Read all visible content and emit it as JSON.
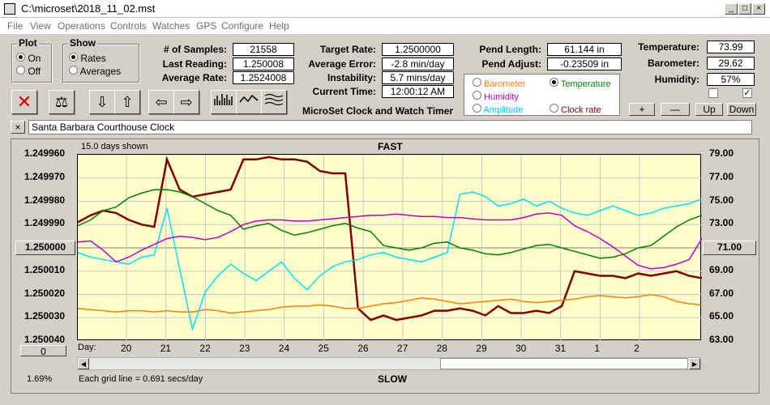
{
  "window": {
    "title": "C:\\microset\\2018_11_02.mst",
    "min": "_",
    "max": "□",
    "close": "×"
  },
  "menu": [
    "File",
    "View",
    "Operations",
    "Controls",
    "Watches",
    "GPS",
    "Configure",
    "Help"
  ],
  "plot_group": {
    "title": "Plot",
    "options": [
      "On",
      "Off"
    ],
    "selected": 0
  },
  "show_group": {
    "title": "Show",
    "options": [
      "Rates",
      "Averages"
    ],
    "selected": 0
  },
  "stats": {
    "samples_label": "# of Samples:",
    "samples": "21558",
    "last_label": "Last Reading:",
    "last": "1.250008",
    "avg_label": "Average Rate:",
    "avg": "1.2524008",
    "target_label": "Target Rate:",
    "target": "1.2500000",
    "avgerr_label": "Average Error:",
    "avgerr": "-2.8 min/day",
    "instab_label": "Instability:",
    "instab": "5.7 mins/day",
    "time_label": "Current Time:",
    "time": "12:00:12 AM",
    "pendlen_label": "Pend Length:",
    "pendlen": "61.144 in",
    "pendadj_label": "Pend Adjust:",
    "pendadj": "-0.23509 in",
    "temp_label": "Temperature:",
    "temp": "73.99",
    "baro_label": "Barometer:",
    "baro": "29.62",
    "hum_label": "Humidity:",
    "hum": "57%"
  },
  "subtitle": "MicroSet Clock and Watch Timer",
  "series_select": {
    "options": [
      {
        "label": "Barometer",
        "color": "#ff8000"
      },
      {
        "label": "Temperature",
        "color": "#008000"
      },
      {
        "label": "Humidity",
        "color": "#c000c0"
      },
      {
        "label": "Amplitude",
        "color": "#00c0ff"
      },
      {
        "label": "Clock rate",
        "color": "#800000"
      }
    ],
    "selected": 1
  },
  "adjust_buttons": [
    "+",
    "—",
    "Up",
    "Down"
  ],
  "clock_name": "Santa Barbara Courthouse Clock",
  "close_x": "×",
  "chart_data": {
    "type": "line",
    "title_top": "FAST",
    "title_bottom": "SLOW",
    "days_shown": "15.0 days shown",
    "grid_note": "Each grid line = 0.691 secs/day",
    "percent": "1.69%",
    "left_button": "1.250000",
    "right_button": "71.00",
    "bottom_left_button": "0",
    "day_label": "Day:",
    "x_ticks": [
      "20",
      "21",
      "22",
      "23",
      "24",
      "25",
      "26",
      "27",
      "28",
      "29",
      "30",
      "31",
      "1",
      "2"
    ],
    "y_left_ticks": [
      "1.249960",
      "1.249970",
      "1.249980",
      "1.249990",
      "1.250000",
      "1.250010",
      "1.250020",
      "1.250030",
      "1.250040"
    ],
    "y_right_ticks": [
      "79.00",
      "77.00",
      "75.00",
      "73.00",
      "71.00",
      "69.00",
      "67.00",
      "65.00",
      "63.00"
    ],
    "series": [
      {
        "name": "Clock rate",
        "color": "#800000",
        "values": [
          1.249989,
          1.249986,
          1.249984,
          1.249985,
          1.249988,
          1.24999,
          1.249991,
          1.249962,
          1.249975,
          1.249978,
          1.249977,
          1.249976,
          1.249975,
          1.249962,
          1.249962,
          1.249961,
          1.249962,
          1.249962,
          1.249963,
          1.249967,
          1.249968,
          1.249968,
          1.250026,
          1.250031,
          1.250029,
          1.250031,
          1.25003,
          1.250029,
          1.250027,
          1.250027,
          1.250026,
          1.250027,
          1.250029,
          1.250025,
          1.250028,
          1.250028,
          1.250027,
          1.250028,
          1.250025,
          1.25001,
          1.250011,
          1.250012,
          1.250012,
          1.250013,
          1.250011,
          1.250012,
          1.250011,
          1.25001,
          1.250012,
          1.250013
        ]
      },
      {
        "name": "Amplitude",
        "color": "#00e0ff",
        "values": [
          70.6,
          70.2,
          70.0,
          69.8,
          69.6,
          70.2,
          70.4,
          74.4,
          69.2,
          64.0,
          67.2,
          68.6,
          69.6,
          68.8,
          68.2,
          69.0,
          69.8,
          68.4,
          67.4,
          68.6,
          69.4,
          69.8,
          70.0,
          70.4,
          70.6,
          70.2,
          70.0,
          69.8,
          70.2,
          70.6,
          75.6,
          75.8,
          75.4,
          74.6,
          74.8,
          75.2,
          74.6,
          75.0,
          74.4,
          74.0,
          73.8,
          74.2,
          74.6,
          74.2,
          73.8,
          74.0,
          74.4,
          74.6,
          74.8,
          75.2
        ]
      },
      {
        "name": "Temperature",
        "color": "#008000",
        "values": [
          72.9,
          73.4,
          74.2,
          74.5,
          75.3,
          75.7,
          76.0,
          76.0,
          75.8,
          75.4,
          74.8,
          74.2,
          73.8,
          72.6,
          72.9,
          73.1,
          72.5,
          72.1,
          72.3,
          72.6,
          72.9,
          73.1,
          72.7,
          72.4,
          71.2,
          71.0,
          70.8,
          71.0,
          71.4,
          71.5,
          71.0,
          70.8,
          70.5,
          70.4,
          70.6,
          70.9,
          71.2,
          71.3,
          71.0,
          70.7,
          70.4,
          70.1,
          70.2,
          70.5,
          71.0,
          71.2,
          72.0,
          72.8,
          73.4,
          73.8
        ]
      },
      {
        "name": "Humidity",
        "color": "#c000c0",
        "values": [
          71.5,
          71.6,
          70.8,
          69.8,
          70.2,
          70.8,
          71.3,
          71.8,
          72.0,
          71.9,
          71.7,
          71.9,
          72.4,
          73.0,
          73.3,
          73.4,
          73.4,
          73.3,
          73.3,
          73.4,
          73.5,
          73.6,
          73.7,
          73.8,
          73.8,
          73.9,
          73.8,
          73.7,
          73.7,
          73.6,
          73.6,
          73.5,
          73.4,
          73.4,
          73.4,
          73.6,
          73.9,
          74.0,
          73.8,
          72.9,
          72.4,
          71.8,
          71.1,
          70.3,
          69.5,
          69.2,
          69.3,
          69.6,
          70.0,
          71.8
        ]
      },
      {
        "name": "Barometer",
        "color": "#ff8000",
        "values": [
          65.8,
          65.7,
          65.6,
          65.5,
          65.6,
          65.6,
          65.5,
          65.6,
          65.5,
          65.5,
          65.7,
          65.6,
          65.4,
          65.5,
          65.6,
          65.7,
          65.9,
          66.0,
          66.0,
          66.1,
          66.0,
          65.8,
          65.8,
          66.0,
          66.2,
          66.3,
          66.5,
          66.7,
          66.6,
          66.4,
          66.2,
          66.3,
          66.4,
          66.5,
          66.6,
          66.4,
          66.3,
          66.4,
          66.5,
          66.6,
          66.8,
          66.9,
          66.8,
          66.7,
          66.8,
          67.0,
          66.8,
          66.4,
          66.2,
          66.1
        ]
      }
    ]
  }
}
